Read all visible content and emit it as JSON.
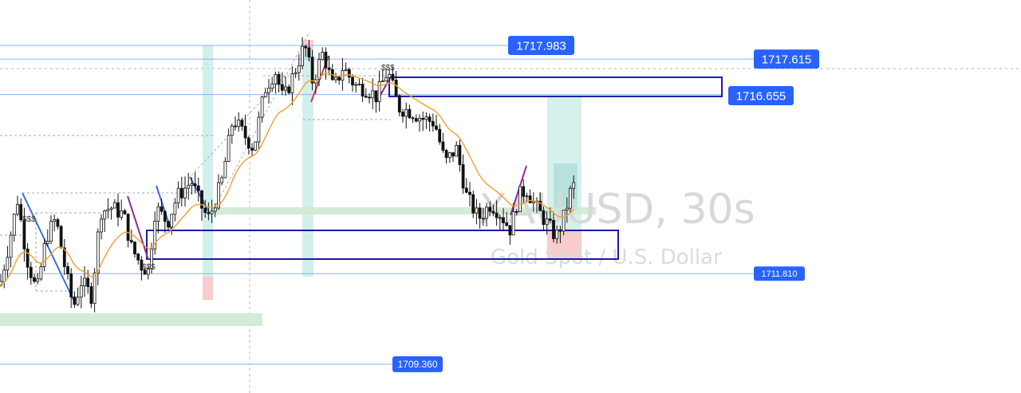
{
  "chart_data": {
    "type": "candlestick",
    "symbol": "XAUUSD",
    "interval": "30s",
    "description": "Gold Spot / U.S. Dollar",
    "ylim": [
      1708.8,
      1718.9
    ],
    "colors": {
      "candle": "#111111",
      "ma_line": "#f0a030",
      "zone_border": "#1a1aa8",
      "level_line": "#8fb3e6",
      "price_label_bg": "#2962ff",
      "green_zone": "#cfe9d2",
      "teal_zone": "#c8ebe6",
      "red_zone": "#f7c6c8",
      "trend_blue": "#3a6fd8",
      "trend_purple": "#8e2a8e",
      "trend_red": "#d63a4a"
    },
    "levels": [
      {
        "label": "1717.983",
        "value": 1717.983
      },
      {
        "label": "1717.615",
        "value": 1717.615
      },
      {
        "label": "1716.655",
        "value": 1716.655
      },
      {
        "label": "1711.810",
        "value": 1711.81
      },
      {
        "label": "1709.360",
        "value": 1709.36
      }
    ],
    "zones": [
      {
        "name": "upper-zone",
        "top": 1717.1,
        "bottom": 1716.7
      },
      {
        "name": "lower-zone",
        "top": 1712.9,
        "bottom": 1712.1
      }
    ],
    "markers": [
      "$$$",
      "$$$",
      "$$$"
    ],
    "price_path": [
      [
        0,
        1711.5
      ],
      [
        10,
        1712.5
      ],
      [
        22,
        1713.8
      ],
      [
        34,
        1712.2
      ],
      [
        46,
        1711.3
      ],
      [
        58,
        1712.8
      ],
      [
        70,
        1713.3
      ],
      [
        82,
        1711.9
      ],
      [
        92,
        1710.9
      ],
      [
        102,
        1711.6
      ],
      [
        115,
        1711.2
      ],
      [
        126,
        1713.5
      ],
      [
        140,
        1713.6
      ],
      [
        155,
        1713.4
      ],
      [
        165,
        1712.5
      ],
      [
        178,
        1712.0
      ],
      [
        186,
        1711.9
      ],
      [
        195,
        1713.6
      ],
      [
        210,
        1713.2
      ],
      [
        222,
        1713.9
      ],
      [
        240,
        1714.3
      ],
      [
        255,
        1713.5
      ],
      [
        262,
        1713.3
      ],
      [
        278,
        1714.3
      ],
      [
        292,
        1716.0
      ],
      [
        305,
        1715.6
      ],
      [
        318,
        1715.2
      ],
      [
        332,
        1716.8
      ],
      [
        345,
        1717.3
      ],
      [
        355,
        1716.5
      ],
      [
        368,
        1717.2
      ],
      [
        382,
        1718.0
      ],
      [
        392,
        1717.0
      ],
      [
        405,
        1717.8
      ],
      [
        418,
        1716.8
      ],
      [
        430,
        1717.4
      ],
      [
        445,
        1716.9
      ],
      [
        460,
        1716.8
      ],
      [
        472,
        1716.6
      ],
      [
        486,
        1717.3
      ],
      [
        500,
        1716.3
      ],
      [
        515,
        1716.2
      ],
      [
        530,
        1716.0
      ],
      [
        545,
        1715.9
      ],
      [
        558,
        1714.8
      ],
      [
        572,
        1715.2
      ],
      [
        585,
        1713.9
      ],
      [
        600,
        1713.3
      ],
      [
        615,
        1713.7
      ],
      [
        625,
        1713.5
      ],
      [
        640,
        1713.0
      ],
      [
        650,
        1713.9
      ],
      [
        660,
        1714.1
      ],
      [
        672,
        1713.6
      ],
      [
        688,
        1713.1
      ],
      [
        697,
        1712.8
      ],
      [
        705,
        1713.2
      ],
      [
        715,
        1714.0
      ],
      [
        722,
        1714.3
      ]
    ]
  }
}
